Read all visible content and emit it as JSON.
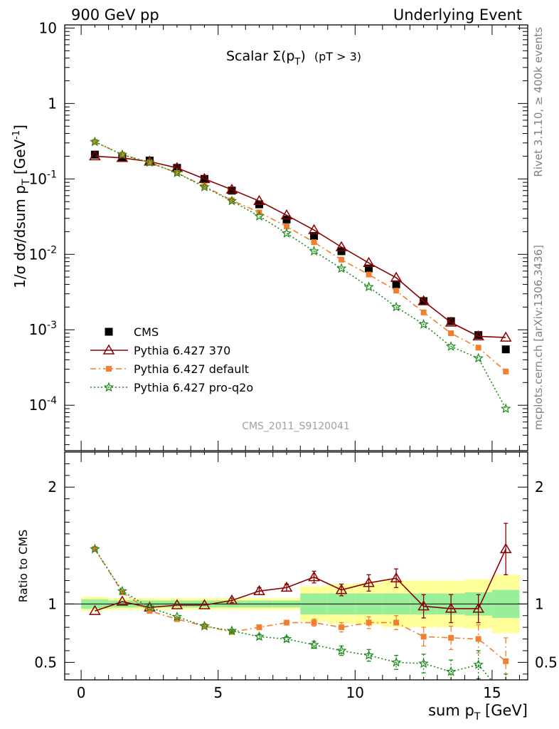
{
  "header": {
    "left": "900 GeV pp",
    "right": "Underlying Event",
    "side_top": "Rivet 3.1.10, ≥ 400k events",
    "side_bottom": "mcplots.cern.ch [arXiv:1306.3436]",
    "watermark": "CMS_2011_S9120041"
  },
  "chart_data": [
    {
      "type": "scatter",
      "title_parts": {
        "main": "Scalar ",
        "sym": "Σ(p",
        "sub": "T",
        "close": ")",
        "cut": "(pT >  3)"
      },
      "ylabel": "1/σ dσ/dsum p_T [GeV^-1]",
      "yscale": "log",
      "ylim": [
        2.5e-05,
        11
      ],
      "xlim": [
        -0.6,
        16.3
      ],
      "ytick_labels": [
        "10",
        "1",
        "10^-1",
        "10^-2",
        "10^-3",
        "10^-4"
      ],
      "legend": {
        "placement": "lower-left"
      },
      "x": [
        0.5,
        1.5,
        2.5,
        3.5,
        4.5,
        5.5,
        6.5,
        7.5,
        8.5,
        9.5,
        10.5,
        11.5,
        12.5,
        13.5,
        14.5,
        15.5
      ],
      "series": [
        {
          "name": "CMS",
          "color": "#000000",
          "marker": "square",
          "values": [
            0.21,
            0.19,
            0.175,
            0.14,
            0.1,
            0.07,
            0.046,
            0.029,
            0.0175,
            0.011,
            0.0065,
            0.004,
            0.0024,
            0.0013,
            0.00085,
            0.00055
          ]
        },
        {
          "name": "Pythia 6.427 370",
          "color": "#8b0000",
          "marker": "triangle",
          "line": "solid",
          "values": [
            0.2,
            0.19,
            0.17,
            0.14,
            0.1,
            0.072,
            0.051,
            0.033,
            0.021,
            0.0125,
            0.0077,
            0.0049,
            0.0024,
            0.00125,
            0.00082,
            0.00079
          ]
        },
        {
          "name": "Pythia 6.427 default",
          "color": "#f08030",
          "marker": "square-small",
          "line": "dashdot",
          "values": [
            0.31,
            0.21,
            0.165,
            0.12,
            0.08,
            0.052,
            0.036,
            0.0235,
            0.0145,
            0.0085,
            0.0054,
            0.0033,
            0.0017,
            0.0009,
            0.00058,
            0.00028
          ]
        },
        {
          "name": "Pythia 6.427 pro-q2o",
          "color": "#1a8a1a",
          "marker": "star",
          "line": "dotted",
          "values": [
            0.31,
            0.21,
            0.165,
            0.12,
            0.078,
            0.051,
            0.032,
            0.019,
            0.011,
            0.0065,
            0.0037,
            0.002,
            0.00118,
            0.0006,
            0.00042,
            9e-05
          ]
        }
      ]
    },
    {
      "type": "line",
      "ylabel": "Ratio to CMS",
      "xlabel": "sum p_T [GeV]",
      "ylim": [
        0.35,
        2.3
      ],
      "xlim": [
        -0.6,
        16.3
      ],
      "xtick_labels": [
        "0",
        "5",
        "10",
        "15"
      ],
      "ytick_labels": [
        "2",
        "1",
        "0.5"
      ],
      "x": [
        0.5,
        1.5,
        2.5,
        3.5,
        4.5,
        5.5,
        6.5,
        7.5,
        8.5,
        9.5,
        10.5,
        11.5,
        12.5,
        13.5,
        14.5,
        15.5
      ],
      "band_inner": [
        0.04,
        0.03,
        0.03,
        0.03,
        0.03,
        0.03,
        0.03,
        0.03,
        0.09,
        0.09,
        0.09,
        0.09,
        0.09,
        0.09,
        0.1,
        0.12
      ],
      "band_outer": [
        0.06,
        0.05,
        0.05,
        0.05,
        0.05,
        0.05,
        0.05,
        0.05,
        0.15,
        0.17,
        0.18,
        0.2,
        0.2,
        0.2,
        0.21,
        0.25
      ],
      "series": [
        {
          "name": "Pythia 6.427 370",
          "color": "#8b0000",
          "marker": "triangle",
          "line": "solid",
          "values": [
            0.94,
            1.02,
            0.97,
            0.99,
            0.99,
            1.03,
            1.11,
            1.14,
            1.23,
            1.12,
            1.18,
            1.22,
            0.98,
            0.96,
            0.96,
            1.47
          ],
          "errors": [
            0,
            0,
            0,
            0,
            0,
            0.02,
            0.03,
            0.03,
            0.05,
            0.05,
            0.07,
            0.08,
            0.1,
            0.12,
            0.12,
            0.22
          ]
        },
        {
          "name": "Pythia 6.427 default",
          "color": "#f08030",
          "marker": "square-small",
          "line": "dashdot",
          "values": [
            1.47,
            1.1,
            0.94,
            0.87,
            0.81,
            0.76,
            0.8,
            0.84,
            0.84,
            0.8,
            0.84,
            0.84,
            0.72,
            0.71,
            0.7,
            0.51
          ],
          "errors": [
            0,
            0,
            0,
            0,
            0,
            0.01,
            0.02,
            0.02,
            0.03,
            0.04,
            0.05,
            0.06,
            0.08,
            0.1,
            0.12,
            0.2
          ]
        },
        {
          "name": "Pythia 6.427 pro-q2o",
          "color": "#1a8a1a",
          "marker": "star",
          "line": "dotted",
          "values": [
            1.47,
            1.11,
            0.97,
            0.89,
            0.81,
            0.77,
            0.72,
            0.7,
            0.65,
            0.6,
            0.56,
            0.5,
            0.49,
            0.42,
            0.48,
            0.2
          ],
          "errors": [
            0,
            0,
            0,
            0,
            0,
            0.01,
            0.02,
            0.02,
            0.03,
            0.04,
            0.05,
            0.06,
            0.08,
            0.1,
            0.12,
            0.2
          ]
        }
      ]
    }
  ]
}
